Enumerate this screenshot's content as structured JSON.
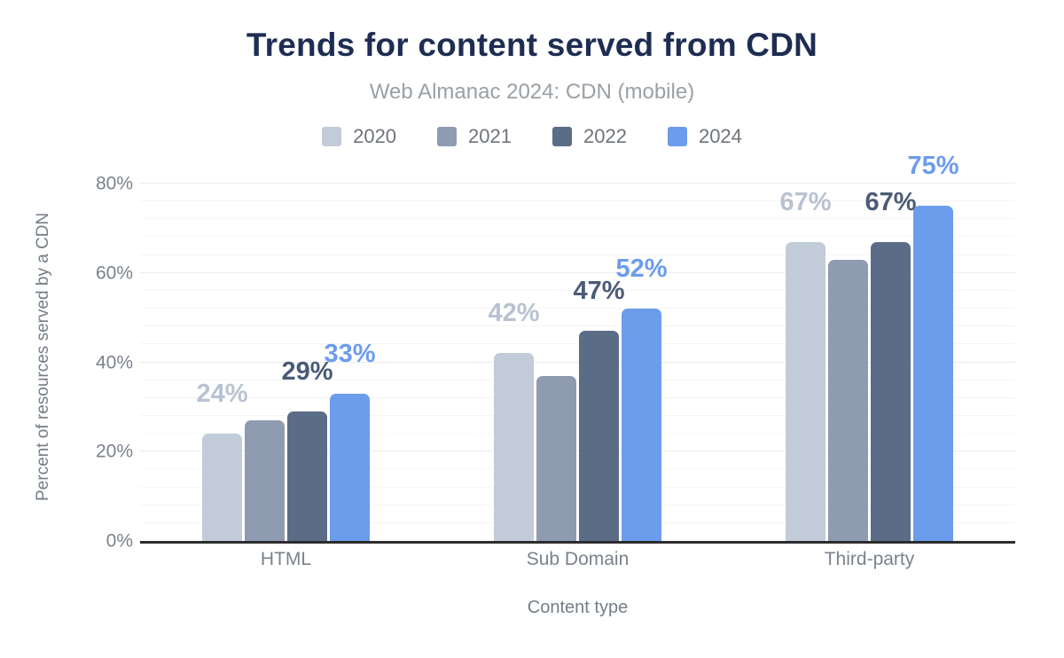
{
  "theme": {
    "title_color": "#1e2d52",
    "subtitle_color": "#9aa0a6",
    "legend_text_color": "#6f737b",
    "axis_text_color": "#7b828c",
    "axis_title_text_color": "#757d87",
    "axis_line_color": "#2c2c2e",
    "grid_major_color": "#ececec",
    "grid_minor_color": "#f6f6f6",
    "background_color": "#ffffff"
  },
  "chart_data": {
    "type": "bar",
    "title": "Trends for content served from CDN",
    "subtitle": "Web Almanac 2024: CDN (mobile)",
    "xlabel": "Content type",
    "ylabel": "Percent of resources served by a CDN",
    "categories": [
      "HTML",
      "Sub Domain",
      "Third-party"
    ],
    "series": [
      {
        "name": "2020",
        "color": "#c2cbd8",
        "label_color": "#b8c2d2",
        "labeled": true,
        "values": [
          24,
          42,
          67
        ]
      },
      {
        "name": "2021",
        "color": "#8e9bb1",
        "label_color": "#8e9bb1",
        "labeled": false,
        "values": [
          27,
          37,
          63
        ]
      },
      {
        "name": "2022",
        "color": "#5b6c87",
        "label_color": "#4a5b76",
        "labeled": true,
        "values": [
          29,
          47,
          67
        ]
      },
      {
        "name": "2024",
        "color": "#6c9cec",
        "label_color": "#6c9cec",
        "labeled": true,
        "values": [
          33,
          52,
          75
        ]
      }
    ],
    "ylim": [
      0,
      82.5
    ],
    "yticks": [
      0,
      20,
      40,
      60,
      80
    ],
    "ytick_format": "{v}%",
    "value_label_format": "{v}%",
    "grid": {
      "major_step": 20,
      "minor_step": 4
    },
    "legend_position": "top",
    "legend_entries": [
      "2020",
      "2021",
      "2022",
      "2024"
    ]
  }
}
